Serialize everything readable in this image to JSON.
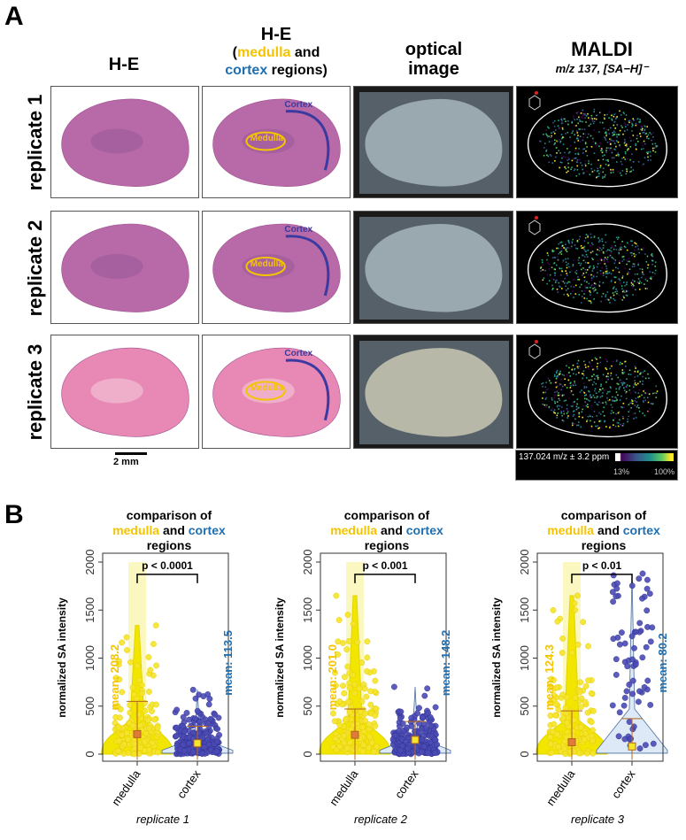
{
  "panel_a": {
    "label": "A",
    "col_headers": {
      "he": "H-E",
      "he_regions": {
        "line1": "H-E",
        "open": "(",
        "medulla": "medulla",
        "and": " and",
        "cortex": "cortex",
        "rest": " regions)"
      },
      "optical": "optical image",
      "maldi": "MALDI",
      "maldi_sub": "m/z 137, [SA−H]⁻"
    },
    "rows": [
      "replicate 1",
      "replicate 2",
      "replicate 3"
    ],
    "region_labels": {
      "cortex": "Cortex",
      "medulla": "Medulla"
    },
    "scale_bar": "2 mm",
    "colorbar": {
      "label": "137.024 m/z ± 3.2 ppm",
      "min": "13%",
      "max": "100%"
    },
    "colors": {
      "medulla": "#f5c400",
      "cortex": "#3a3aa0",
      "he": "#c9609f"
    }
  },
  "panel_b": {
    "label": "B",
    "title": {
      "line1": "comparison of",
      "medulla": "medulla",
      "and": " and ",
      "cortex": "cortex",
      "line3": "regions"
    }
  },
  "chart_data": [
    {
      "type": "violin",
      "xlabel": "replicate 1",
      "ylabel": "normalized SA intensity",
      "ylim": [
        0,
        2000
      ],
      "yticks": [
        "0",
        "500",
        "1000",
        "1500",
        "2000"
      ],
      "categories": [
        "medulla",
        "cortex"
      ],
      "means": [
        208.2,
        113.5
      ],
      "mean_labels": [
        "mean: 208.2",
        "mean: 113.5"
      ],
      "whisker_upper": [
        550,
        290
      ],
      "max": [
        1340,
        670
      ],
      "p_value": "p < 0.0001"
    },
    {
      "type": "violin",
      "xlabel": "replicate 2",
      "ylabel": "normalized SA intensity",
      "ylim": [
        0,
        2000
      ],
      "yticks": [
        "0",
        "500",
        "1000",
        "1500",
        "2000"
      ],
      "categories": [
        "medulla",
        "cortex"
      ],
      "means": [
        201.0,
        148.2
      ],
      "mean_labels": [
        "mean: 201.0",
        "mean: 148.2"
      ],
      "whisker_upper": [
        470,
        340
      ],
      "max": [
        1650,
        700
      ],
      "p_value": "p < 0.001"
    },
    {
      "type": "violin",
      "xlabel": "replicate 3",
      "ylabel": "normalized SA intensity",
      "ylim": [
        0,
        2000
      ],
      "yticks": [
        "0",
        "500",
        "1000",
        "1500",
        "2000"
      ],
      "categories": [
        "medulla",
        "cortex"
      ],
      "means": [
        124.3,
        80.2
      ],
      "mean_labels": [
        "mean: 124.3",
        "mean: 80.2"
      ],
      "whisker_upper": [
        450,
        370
      ],
      "max": [
        1650,
        1880
      ],
      "p_value": "p < 0.01"
    }
  ]
}
